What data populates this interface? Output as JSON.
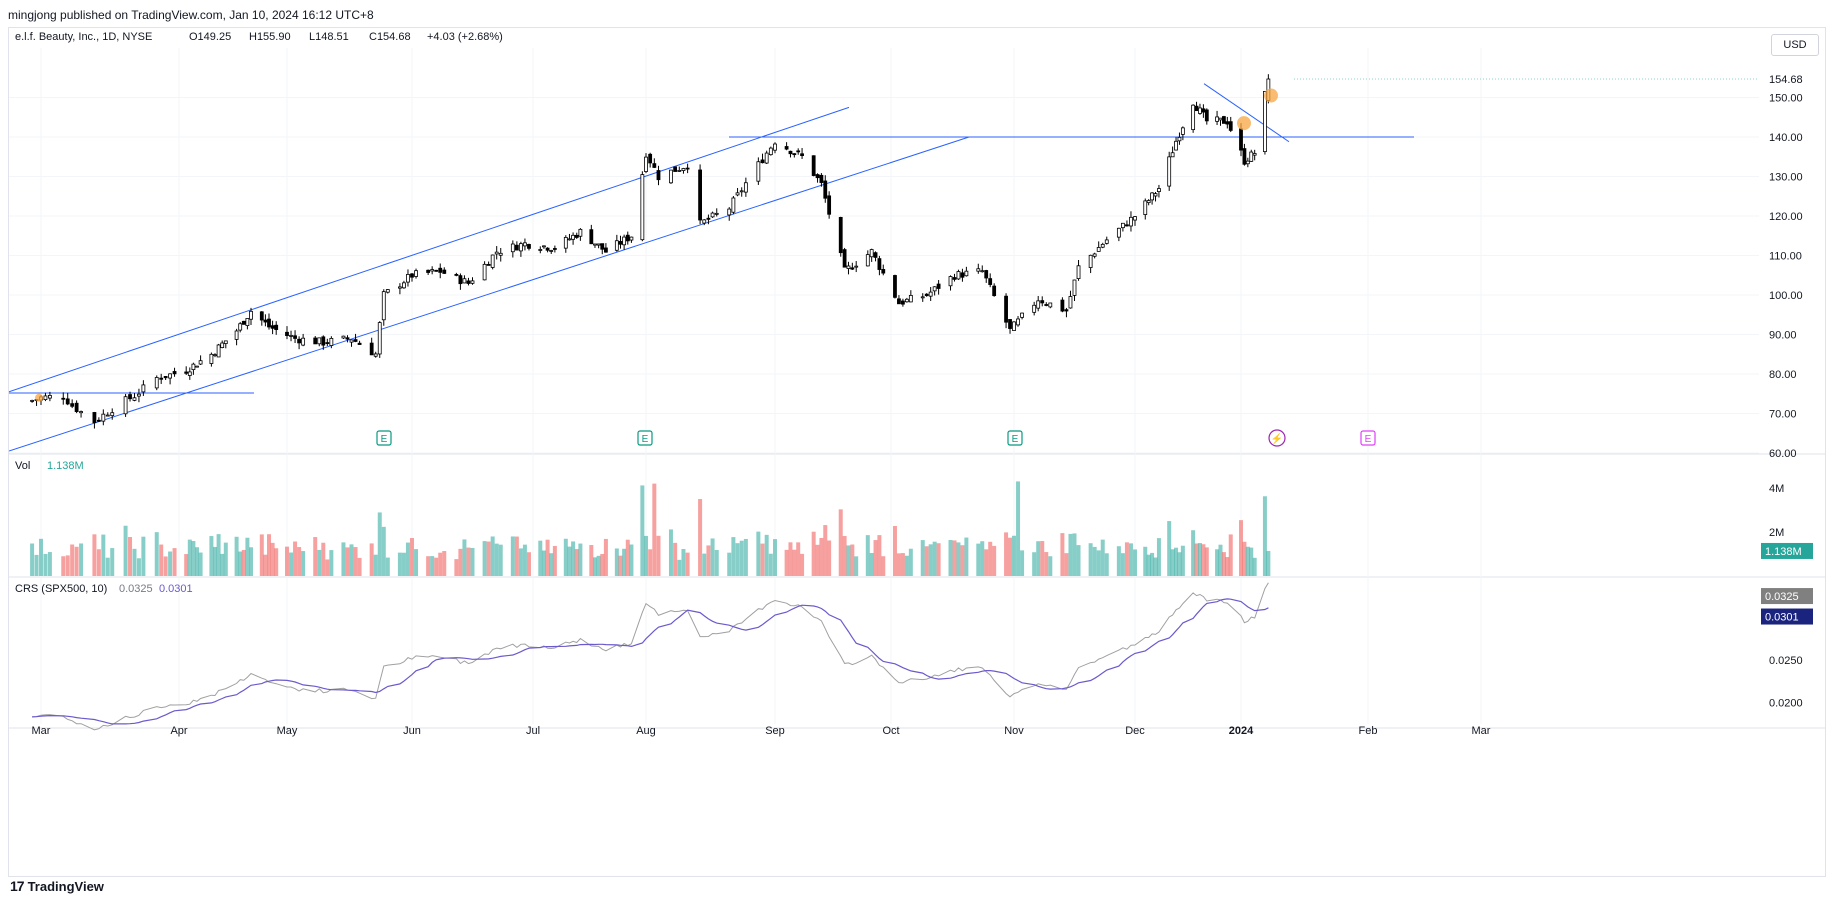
{
  "header": {
    "publish_line": "mingjong published on TradingView.com, Jan 10, 2024 16:12 UTC+8",
    "symbol": "e.l.f. Beauty, Inc., 1D, NYSE",
    "ohlc": {
      "open": "O149.25",
      "high": "H155.90",
      "low": "L148.51",
      "close": "C154.68",
      "change": "+4.03 (+2.68%)"
    },
    "currency": "USD"
  },
  "footer": {
    "brand": "TradingView"
  },
  "colors": {
    "up": "#26a69a",
    "down": "#ef5350",
    "line": "#2962ff",
    "bg": "#ffffff",
    "grid": "#f0f3fa",
    "candle_up_fill": "#ffffff",
    "candle_border": "#000000",
    "sma": "#6a5acd",
    "crs": "#a0a0a0",
    "highlight": "#f7a541"
  },
  "chart_data": [
    {
      "type": "candlestick",
      "title": "e.l.f. Beauty, Inc., 1D, NYSE",
      "y_range": [
        60,
        160
      ],
      "y_ticks": [
        "154.68",
        "150.00",
        "140.00",
        "130.00",
        "120.00",
        "110.00",
        "100.00",
        "90.00",
        "80.00",
        "70.00",
        "60.00"
      ],
      "last_price": "154.68",
      "x_ticks": [
        "Mar",
        "Apr",
        "May",
        "Jun",
        "Jul",
        "Aug",
        "Sep",
        "Oct",
        "Nov",
        "Dec",
        "2024",
        "Feb",
        "Mar"
      ],
      "anchor_closes": [
        [
          "Feb 26",
          73
        ],
        [
          "Mar 1",
          74
        ],
        [
          "Mar 6",
          74.5
        ],
        [
          "Mar 8",
          72
        ],
        [
          "Mar 13",
          68
        ],
        [
          "Mar 18",
          72
        ],
        [
          "Mar 22",
          74.5
        ],
        [
          "Mar 27",
          79
        ],
        [
          "Apr 3",
          81
        ],
        [
          "Apr 10",
          85
        ],
        [
          "Apr 17",
          91
        ],
        [
          "Apr 21",
          96
        ],
        [
          "Apr 26",
          92
        ],
        [
          "May 3",
          89
        ],
        [
          "May 10",
          88
        ],
        [
          "May 17",
          89
        ],
        [
          "May 23",
          85
        ],
        [
          "May 25",
          100
        ],
        [
          "Jun 1",
          105
        ],
        [
          "Jun 8",
          106
        ],
        [
          "Jun 15",
          103
        ],
        [
          "Jun 22",
          111
        ],
        [
          "Jun 29",
          113
        ],
        [
          "Jul 7",
          112
        ],
        [
          "Jul 14",
          116
        ],
        [
          "Jul 21",
          111
        ],
        [
          "Jul 28",
          115
        ],
        [
          "Aug 1",
          136
        ],
        [
          "Aug 4",
          130
        ],
        [
          "Aug 11",
          133
        ],
        [
          "Aug 14",
          118
        ],
        [
          "Aug 21",
          122
        ],
        [
          "Aug 28",
          133
        ],
        [
          "Sep 1",
          139
        ],
        [
          "Sep 8",
          135
        ],
        [
          "Sep 13",
          128
        ],
        [
          "Sep 19",
          106
        ],
        [
          "Sep 26",
          111
        ],
        [
          "Oct 3",
          98
        ],
        [
          "Oct 10",
          100
        ],
        [
          "Oct 17",
          105
        ],
        [
          "Oct 24",
          106
        ],
        [
          "Oct 31",
          91
        ],
        [
          "Nov 7",
          99
        ],
        [
          "Nov 14",
          96
        ],
        [
          "Nov 17",
          107
        ],
        [
          "Nov 24",
          114
        ],
        [
          "Dec 1",
          120
        ],
        [
          "Dec 8",
          127
        ],
        [
          "Dec 13",
          139
        ],
        [
          "Dec 18",
          149
        ],
        [
          "Dec 22",
          144
        ],
        [
          "Dec 28",
          144
        ],
        [
          "Jan 2",
          134
        ],
        [
          "Jan 5",
          136
        ],
        [
          "Jan 8",
          150.65
        ],
        [
          "Jan 9",
          154.68
        ]
      ],
      "annotations": [
        {
          "kind": "channel",
          "description": "upper trend line"
        },
        {
          "kind": "channel",
          "description": "lower trend line"
        },
        {
          "kind": "horizontal",
          "level": 75.2
        },
        {
          "kind": "horizontal",
          "level": 140
        },
        {
          "kind": "downtrend",
          "description": "descending trend line"
        }
      ],
      "event_markers": [
        {
          "label": "E",
          "color": "#089981"
        },
        {
          "label": "E",
          "color": "#089981"
        },
        {
          "label": "E",
          "color": "#089981"
        },
        {
          "label": "⚡",
          "color": "#9c27b0"
        },
        {
          "label": "E",
          "color": "#e040fb"
        }
      ]
    },
    {
      "type": "bar",
      "title": "Vol",
      "last_value": "1.138M",
      "y_ticks": [
        "4M",
        "2M"
      ],
      "y_range": [
        0,
        5000000
      ],
      "note": "daily volume, green=up day, red=down day"
    },
    {
      "type": "line",
      "title": "CRS (SPX500, 10)",
      "values_shown": [
        "0.0325",
        "0.0301"
      ],
      "y_ticks": [
        "0.0250",
        "0.0200"
      ],
      "y_range": [
        0.0175,
        0.0345
      ],
      "series": [
        {
          "name": "CRS",
          "last": "0.0325"
        },
        {
          "name": "SMA",
          "last": "0.0301"
        }
      ]
    }
  ]
}
